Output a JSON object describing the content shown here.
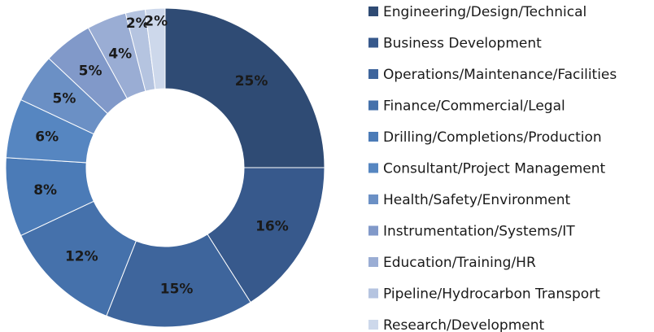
{
  "chart_data": {
    "type": "pie",
    "categories": [
      "Engineering/Design/Technical",
      "Business Development",
      "Operations/Maintenance/Facilities",
      "Finance/Commercial/Legal",
      "Drilling/Completions/Production",
      "Consultant/Project Management",
      "Health/Safety/Environment",
      "Instrumentation/Systems/IT",
      "Education/Training/HR",
      "Pipeline/Hydrocarbon Transport",
      "Research/Development"
    ],
    "values": [
      25,
      16,
      15,
      12,
      8,
      6,
      5,
      5,
      4,
      2,
      2
    ],
    "value_labels": [
      "25%",
      "16%",
      "15%",
      "12%",
      "8%",
      "6%",
      "5%",
      "5%",
      "4%",
      "2%",
      "2%"
    ],
    "colors": [
      "#2f4b74",
      "#37598c",
      "#3e659c",
      "#4571ab",
      "#4b7bb7",
      "#5686c1",
      "#6b90c5",
      "#8199c9",
      "#9aadd4",
      "#b5c4e0",
      "#cdd8eb"
    ],
    "legend": "right"
  }
}
